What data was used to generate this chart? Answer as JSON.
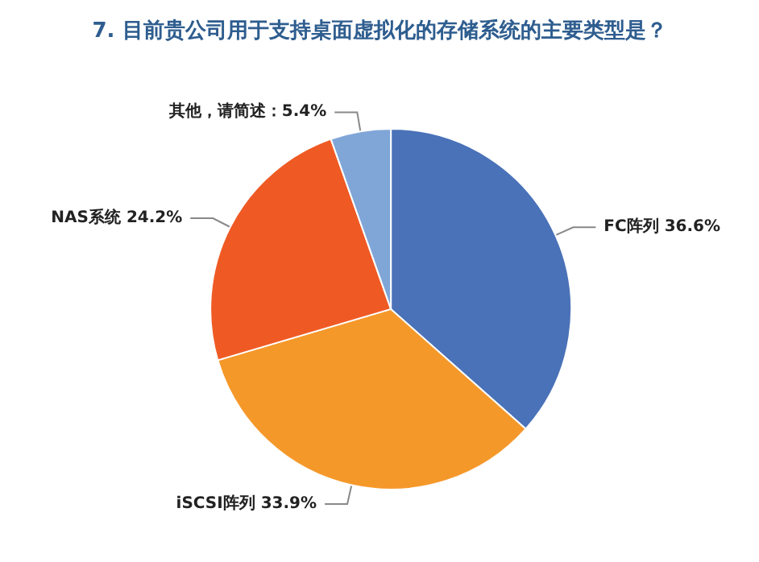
{
  "chart_data": {
    "type": "pie",
    "title": "7. 目前贵公司用于支持桌面虚拟化的存储系统的主要类型是？",
    "categories": [
      "FC阵列",
      "iSCSI阵列",
      "NAS系统",
      "其他，请简述"
    ],
    "values": [
      36.6,
      33.9,
      24.2,
      5.4
    ],
    "colors": [
      "#4a72b8",
      "#f5982a",
      "#ef5a24",
      "#80a6d8"
    ],
    "value_labels": [
      "36.6%",
      "33.9%",
      "24.2%",
      "：5.4%"
    ],
    "legend": false
  }
}
